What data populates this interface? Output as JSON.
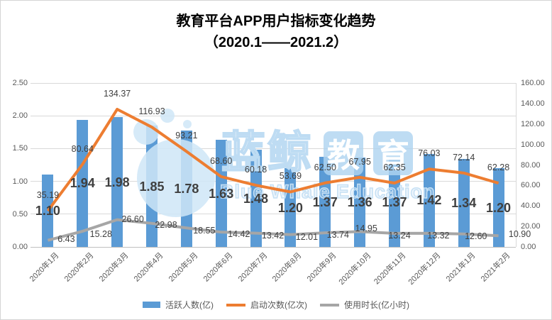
{
  "title": {
    "line1": "教育平台APP用户指标变化趋势",
    "line2": "（2020.1——2021.2）"
  },
  "watermark": {
    "cn_outline": "蓝鲸",
    "badge1": "教",
    "badge2": "育",
    "en": "Blue Whale Education"
  },
  "chart_data": {
    "type": "combo-bar-line",
    "title": "教育平台APP用户指标变化趋势（2020.1——2021.2）",
    "categories": [
      "2020年1月",
      "2020年2月",
      "2020年3月",
      "2020年4月",
      "2020年5月",
      "2020年6月",
      "2020年7月",
      "2020年8月",
      "2020年9月",
      "2020年10月",
      "2020年11月",
      "2020年12月",
      "2021年1月",
      "2021年2月"
    ],
    "series": [
      {
        "name": "活跃人数(亿)",
        "type": "bar",
        "axis": "left",
        "color": "#5b9bd5",
        "values": [
          1.1,
          1.94,
          1.98,
          1.85,
          1.78,
          1.63,
          1.48,
          1.2,
          1.37,
          1.36,
          1.37,
          1.42,
          1.34,
          1.2
        ]
      },
      {
        "name": "启动次数(亿次)",
        "type": "line",
        "axis": "right",
        "color": "#ed7d31",
        "values": [
          35.19,
          80.64,
          134.37,
          116.93,
          93.21,
          68.6,
          60.18,
          53.69,
          62.5,
          67.95,
          62.35,
          76.03,
          72.14,
          62.28
        ]
      },
      {
        "name": "使用时长(亿小时)",
        "type": "line",
        "axis": "right",
        "color": "#a6a6a6",
        "values": [
          6.43,
          15.28,
          26.6,
          22.98,
          18.55,
          14.42,
          13.42,
          12.01,
          13.74,
          14.95,
          13.24,
          13.32,
          12.6,
          10.9
        ]
      }
    ],
    "left_axis": {
      "min": 0,
      "max": 2.5,
      "step": 0.5,
      "ticks": [
        "2.50",
        "2.00",
        "1.50",
        "1.00",
        "0.50",
        "0.00"
      ]
    },
    "right_axis": {
      "min": 0,
      "max": 160,
      "step": 20,
      "ticks": [
        "160.00",
        "140.00",
        "120.00",
        "100.00",
        "80.00",
        "60.00",
        "40.00",
        "20.00",
        "0.00"
      ]
    },
    "grid": true,
    "legend_position": "bottom",
    "data_labels": true
  }
}
